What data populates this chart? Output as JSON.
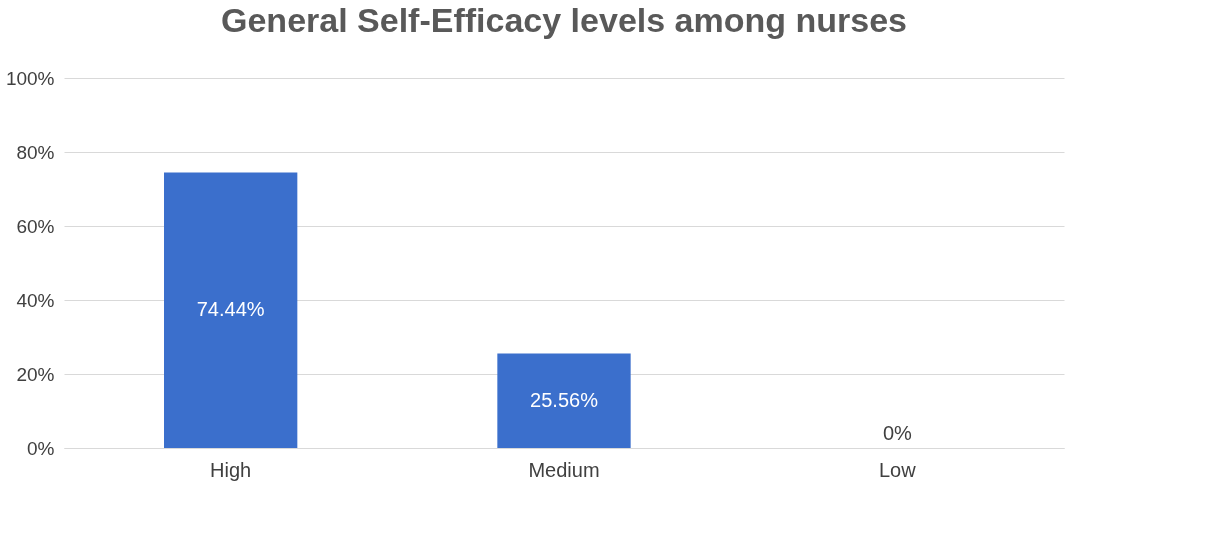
{
  "chart_data": {
    "type": "bar",
    "title": "General Self-Efficacy levels among nurses",
    "categories": [
      "High",
      "Medium",
      "Low"
    ],
    "values": [
      74.44,
      25.56,
      0
    ],
    "value_labels": [
      "74.44%",
      "25.56%",
      "0%"
    ],
    "colors": [
      "#3b6fcc",
      "#3b6fcc",
      "#1c2440"
    ],
    "ylim": [
      0,
      100
    ],
    "yticks": [
      {
        "value": 0,
        "label": "0%"
      },
      {
        "value": 20,
        "label": "20%"
      },
      {
        "value": 40,
        "label": "40%"
      },
      {
        "value": 60,
        "label": "60%"
      },
      {
        "value": 80,
        "label": "80%"
      },
      {
        "value": 100,
        "label": "100%"
      }
    ],
    "grid": "y"
  }
}
